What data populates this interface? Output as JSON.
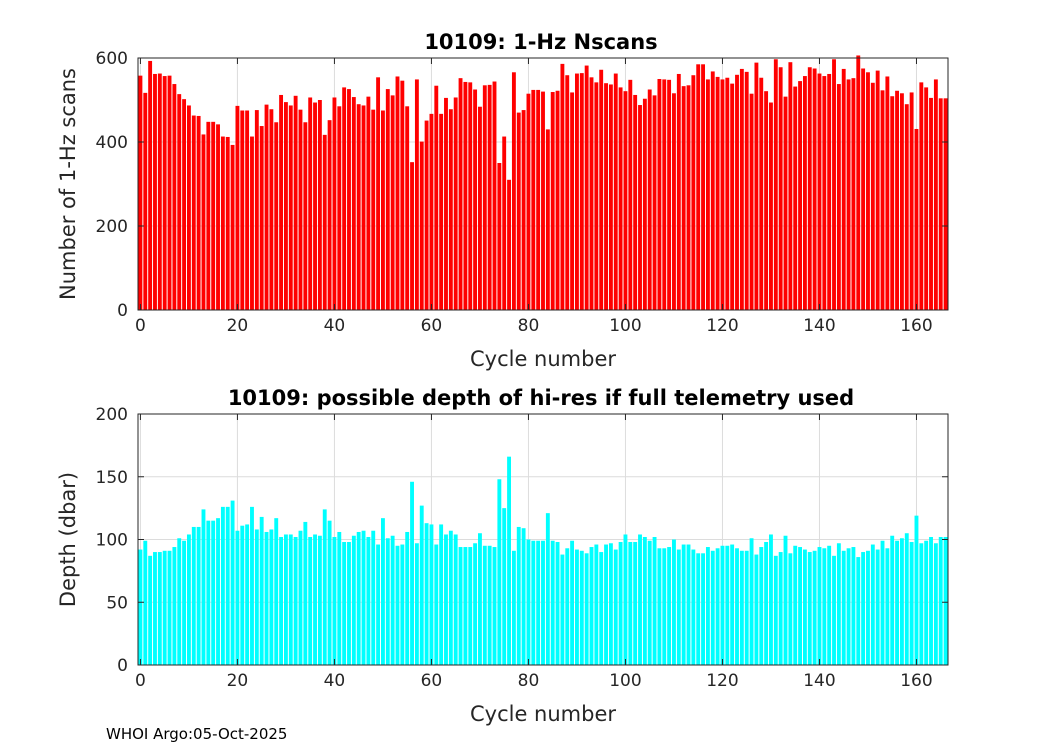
{
  "footer": "WHOI Argo:05-Oct-2025",
  "chart_data": [
    {
      "type": "bar",
      "title": "10109: 1-Hz Nscans",
      "xlabel": "Cycle number",
      "ylabel": "Number of 1-Hz scans",
      "xlim": [
        -0.5,
        166.5
      ],
      "ylim": [
        0,
        600
      ],
      "xticks": [
        0,
        20,
        40,
        60,
        80,
        100,
        120,
        140,
        160
      ],
      "yticks": [
        0,
        200,
        400,
        600
      ],
      "grid": true,
      "color": "#ff0000",
      "x_start": 0,
      "values": [
        558,
        517,
        593,
        562,
        563,
        557,
        558,
        538,
        514,
        502,
        487,
        463,
        462,
        418,
        448,
        448,
        442,
        413,
        412,
        393,
        486,
        475,
        475,
        413,
        476,
        438,
        489,
        478,
        447,
        512,
        495,
        487,
        510,
        477,
        447,
        506,
        494,
        500,
        417,
        452,
        506,
        485,
        530,
        526,
        507,
        490,
        487,
        508,
        477,
        554,
        475,
        526,
        511,
        556,
        546,
        485,
        352,
        549,
        401,
        451,
        467,
        534,
        467,
        505,
        478,
        506,
        552,
        543,
        542,
        525,
        484,
        535,
        536,
        544,
        350,
        413,
        310,
        566,
        470,
        476,
        515,
        524,
        524,
        520,
        430,
        519,
        522,
        586,
        559,
        518,
        563,
        564,
        582,
        554,
        542,
        572,
        540,
        537,
        563,
        530,
        521,
        548,
        512,
        488,
        503,
        525,
        511,
        550,
        549,
        548,
        516,
        562,
        533,
        535,
        559,
        585,
        585,
        549,
        568,
        555,
        549,
        553,
        539,
        560,
        574,
        567,
        515,
        589,
        553,
        521,
        494,
        597,
        578,
        508,
        590,
        532,
        545,
        557,
        578,
        575,
        563,
        557,
        562,
        597,
        538,
        574,
        549,
        552,
        606,
        575,
        566,
        541,
        570,
        523,
        556,
        509,
        522,
        516,
        490,
        518,
        431,
        542,
        530,
        505,
        549,
        504,
        504
      ]
    },
    {
      "type": "bar",
      "title": "10109: possible depth of hi-res if full telemetry used",
      "xlabel": "Cycle number",
      "ylabel": "Depth (dbar)",
      "xlim": [
        -0.5,
        166.5
      ],
      "ylim": [
        0,
        200
      ],
      "xticks": [
        0,
        20,
        40,
        60,
        80,
        100,
        120,
        140,
        160
      ],
      "yticks": [
        0,
        50,
        100,
        150,
        200
      ],
      "grid": true,
      "color": "#00ffff",
      "x_start": 0,
      "values": [
        92,
        99,
        87,
        90,
        90,
        91,
        91,
        94,
        101,
        99,
        104,
        110,
        110,
        124,
        115,
        115,
        117,
        126,
        126,
        131,
        107,
        111,
        112,
        126,
        108,
        118,
        106,
        108,
        117,
        102,
        104,
        104,
        102,
        107,
        114,
        102,
        104,
        103,
        124,
        115,
        102,
        106,
        98,
        98,
        103,
        106,
        107,
        102,
        107,
        96,
        117,
        101,
        103,
        95,
        96,
        106,
        146,
        97,
        127,
        113,
        112,
        96,
        112,
        104,
        107,
        104,
        94,
        94,
        94,
        97,
        105,
        95,
        95,
        94,
        148,
        125,
        166,
        91,
        110,
        109,
        100,
        99,
        99,
        99,
        121,
        99,
        98,
        88,
        93,
        99,
        92,
        91,
        89,
        94,
        96,
        90,
        96,
        97,
        92,
        98,
        104,
        98,
        98,
        104,
        102,
        99,
        102,
        93,
        93,
        94,
        100,
        92,
        96,
        96,
        92,
        89,
        89,
        94,
        91,
        93,
        95,
        95,
        96,
        93,
        91,
        91,
        101,
        88,
        94,
        98,
        104,
        87,
        90,
        103,
        89,
        95,
        94,
        92,
        90,
        91,
        94,
        93,
        95,
        87,
        97,
        91,
        93,
        94,
        86,
        90,
        91,
        96,
        92,
        99,
        93,
        103,
        99,
        101,
        105,
        98,
        119,
        97,
        99,
        102,
        97,
        102,
        102
      ]
    }
  ]
}
